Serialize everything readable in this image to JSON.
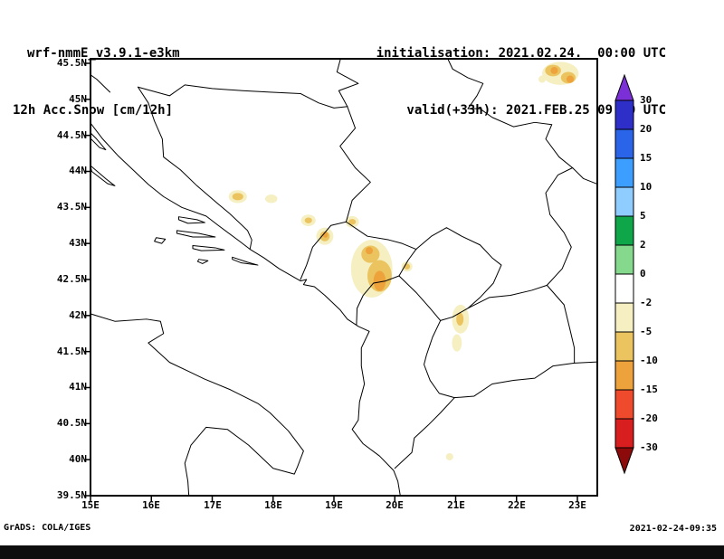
{
  "header": {
    "model": "wrf-nmmE_v3.9.1-e3km",
    "field": "12h Acc.Snow [cm/12h]",
    "init_label": "initialisation: 2021.02.24.  00:00 UTC",
    "valid_label": "valid(+33h): 2021.FEB.25 09:00 UTC"
  },
  "footer": {
    "left": "GrADS: COLA/IGES",
    "right": "2021-02-24-09:35"
  },
  "map": {
    "lat_labels": [
      "45.5N",
      "45N",
      "44.5N",
      "44N",
      "43.5N",
      "43N",
      "42.5N",
      "42N",
      "41.5N",
      "41N",
      "40.5N",
      "40N",
      "39.5N"
    ],
    "lon_labels": [
      "15E",
      "16E",
      "17E",
      "18E",
      "19E",
      "20E",
      "21E",
      "22E",
      "23E"
    ]
  },
  "colorbar": {
    "labels": [
      "30",
      "20",
      "15",
      "10",
      "5",
      "2",
      "0",
      "-2",
      "-5",
      "-10",
      "-15",
      "-20",
      "-30"
    ],
    "top_arrow_color": "#7B2FD6",
    "bottom_arrow_color": "#8C0A0A",
    "band_colors": [
      "#2E2EC8",
      "#2A64E8",
      "#3C9EFF",
      "#8FCCFF",
      "#0FA64A",
      "#84D98C",
      "#FFFFFF",
      "#F5EFC2",
      "#EBC45F",
      "#EDA23C",
      "#EF4A2B",
      "#D81E1E"
    ]
  },
  "chart_data": {
    "type": "heatmap",
    "title": "12h Acc.Snow [cm/12h]",
    "model": "wrf-nmmE_v3.9.1-e3km",
    "initialisation": "2021.02.24. 00:00 UTC",
    "valid": "2021.FEB.25 09:00 UTC (+33h)",
    "units": "cm/12h",
    "extent": {
      "lon_min": 15,
      "lon_max": 23.33,
      "lat_min": 39.5,
      "lat_max": 45.56
    },
    "levels": [
      30,
      20,
      15,
      10,
      5,
      2,
      0,
      -2,
      -5,
      -10,
      -15,
      -20,
      -30
    ],
    "palette": {
      "pale": "#F5EFC2",
      "mid": "#EBC45F",
      "orange": "#EDA23C"
    },
    "palette_value_bands": {
      "pale": "-5 to -2",
      "mid": "-10 to -5",
      "orange": "-15 to -10"
    },
    "snow_patches": [
      {
        "lon": 22.72,
        "lat": 45.36,
        "rx": 0.3,
        "ry": 0.16,
        "level": "pale"
      },
      {
        "lon": 22.42,
        "lat": 45.28,
        "rx": 0.06,
        "ry": 0.05,
        "level": "pale"
      },
      {
        "lon": 17.42,
        "lat": 43.65,
        "rx": 0.15,
        "ry": 0.09,
        "level": "pale"
      },
      {
        "lon": 17.97,
        "lat": 43.62,
        "rx": 0.1,
        "ry": 0.06,
        "level": "pale"
      },
      {
        "lon": 18.58,
        "lat": 43.32,
        "rx": 0.12,
        "ry": 0.08,
        "level": "pale"
      },
      {
        "lon": 18.85,
        "lat": 43.1,
        "rx": 0.14,
        "ry": 0.12,
        "level": "pale"
      },
      {
        "lon": 19.3,
        "lat": 43.3,
        "rx": 0.11,
        "ry": 0.08,
        "level": "pale"
      },
      {
        "lon": 19.62,
        "lat": 42.65,
        "rx": 0.34,
        "ry": 0.4,
        "level": "pale"
      },
      {
        "lon": 20.2,
        "lat": 42.68,
        "rx": 0.09,
        "ry": 0.07,
        "level": "pale"
      },
      {
        "lon": 21.08,
        "lat": 41.95,
        "rx": 0.14,
        "ry": 0.2,
        "level": "pale"
      },
      {
        "lon": 21.02,
        "lat": 41.62,
        "rx": 0.08,
        "ry": 0.12,
        "level": "pale"
      },
      {
        "lon": 20.9,
        "lat": 40.04,
        "rx": 0.06,
        "ry": 0.05,
        "level": "pale"
      },
      {
        "lon": 22.6,
        "lat": 45.4,
        "rx": 0.13,
        "ry": 0.08,
        "level": "mid"
      },
      {
        "lon": 22.85,
        "lat": 45.3,
        "rx": 0.12,
        "ry": 0.08,
        "level": "mid"
      },
      {
        "lon": 17.42,
        "lat": 43.65,
        "rx": 0.09,
        "ry": 0.05,
        "level": "mid"
      },
      {
        "lon": 18.58,
        "lat": 43.32,
        "rx": 0.06,
        "ry": 0.04,
        "level": "mid"
      },
      {
        "lon": 18.85,
        "lat": 43.1,
        "rx": 0.08,
        "ry": 0.07,
        "level": "mid"
      },
      {
        "lon": 19.3,
        "lat": 43.3,
        "rx": 0.06,
        "ry": 0.04,
        "level": "mid"
      },
      {
        "lon": 19.6,
        "lat": 42.85,
        "rx": 0.15,
        "ry": 0.12,
        "level": "mid"
      },
      {
        "lon": 19.75,
        "lat": 42.55,
        "rx": 0.2,
        "ry": 0.22,
        "level": "mid"
      },
      {
        "lon": 20.2,
        "lat": 42.68,
        "rx": 0.05,
        "ry": 0.04,
        "level": "mid"
      },
      {
        "lon": 21.07,
        "lat": 41.95,
        "rx": 0.06,
        "ry": 0.09,
        "level": "mid"
      },
      {
        "lon": 22.62,
        "lat": 45.4,
        "rx": 0.06,
        "ry": 0.05,
        "level": "orange"
      },
      {
        "lon": 22.88,
        "lat": 45.28,
        "rx": 0.06,
        "ry": 0.05,
        "level": "orange"
      },
      {
        "lon": 18.86,
        "lat": 43.12,
        "rx": 0.04,
        "ry": 0.04,
        "level": "orange"
      },
      {
        "lon": 19.75,
        "lat": 42.48,
        "rx": 0.1,
        "ry": 0.14,
        "level": "orange"
      },
      {
        "lon": 19.58,
        "lat": 42.9,
        "rx": 0.06,
        "ry": 0.05,
        "level": "orange"
      }
    ]
  }
}
